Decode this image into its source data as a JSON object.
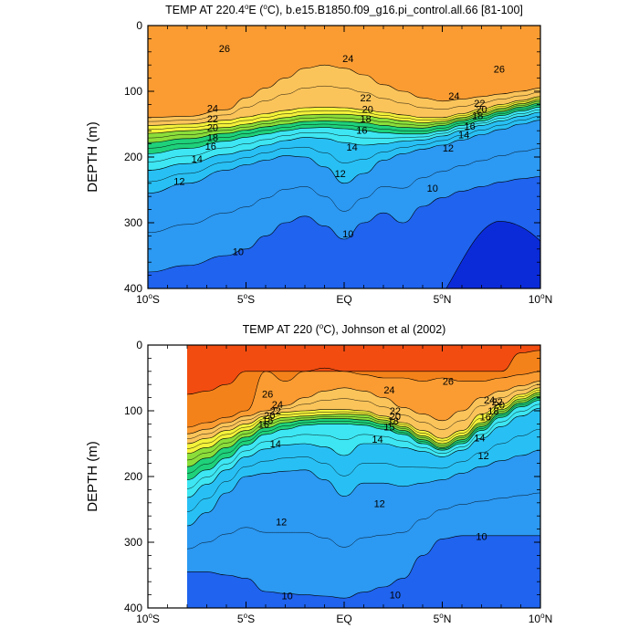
{
  "palette": {
    "lt9": "#0b2bd9",
    "9_10": "#1f63ee",
    "10_12": "#2c99f2",
    "12_14": "#28c0f4",
    "14_16": "#3de6f2",
    "16_18": "#1ed17a",
    "18_20": "#8bde3a",
    "20_22": "#f4f23a",
    "22_24": "#fbc45a",
    "24_26": "#fa9c32",
    "26_28": "#f4821a",
    "gt28": "#f24c10"
  },
  "chart_data": [
    {
      "type": "contour",
      "title": "TEMP AT 220.4°E (°C), b.e15.B1850.f09_g16.pi_control.all.66 [81-100]",
      "title_parts": {
        "pre": "TEMP AT 220.4",
        "deg1": "o",
        "mid": "E (",
        "deg2": "o",
        "post": "C), b.e15.B1850.f09_g16.pi_control.all.66 [81-100]"
      },
      "xlabel": "",
      "ylabel": "DEPTH (m)",
      "xlim": [
        -10,
        10
      ],
      "ylim": [
        400,
        0
      ],
      "x_ticks": [
        {
          "value": -10,
          "num": "10",
          "deg": "o",
          "hem": "S"
        },
        {
          "value": -5,
          "num": "5",
          "deg": "o",
          "hem": "S"
        },
        {
          "value": 0,
          "num": "EQ",
          "deg": "",
          "hem": ""
        },
        {
          "value": 5,
          "num": "5",
          "deg": "o",
          "hem": "N"
        },
        {
          "value": 10,
          "num": "10",
          "deg": "o",
          "hem": "N"
        }
      ],
      "y_ticks": [
        0,
        100,
        200,
        300,
        400
      ],
      "data_lat_range": [
        -10,
        10
      ],
      "isotherm_depths": {
        "lat": [
          -10,
          -8,
          -6,
          -5,
          -4,
          -3,
          -2,
          -1,
          0,
          1,
          2,
          3,
          4,
          5,
          6,
          7,
          8,
          9,
          10
        ],
        "t24": [
          140,
          138,
          128,
          110,
          95,
          80,
          65,
          60,
          65,
          75,
          90,
          100,
          110,
          115,
          112,
          108,
          104,
          100,
          95
        ],
        "t22": [
          152,
          150,
          144,
          139,
          134,
          129,
          125,
          124,
          125,
          128,
          132,
          136,
          140,
          140,
          134,
          127,
          120,
          114,
          108
        ],
        "t20": [
          164,
          160,
          155,
          150,
          145,
          140,
          136,
          135,
          135,
          137,
          141,
          145,
          148,
          146,
          140,
          133,
          126,
          119,
          113
        ],
        "t18": [
          178,
          172,
          164,
          159,
          154,
          150,
          146,
          145,
          146,
          148,
          152,
          155,
          156,
          152,
          145,
          138,
          131,
          124,
          118
        ],
        "t16": [
          195,
          187,
          176,
          170,
          165,
          160,
          156,
          155,
          157,
          160,
          163,
          165,
          165,
          160,
          152,
          145,
          137,
          130,
          124
        ],
        "t14": [
          220,
          210,
          196,
          190,
          182,
          175,
          170,
          172,
          178,
          182,
          180,
          176,
          174,
          168,
          160,
          152,
          145,
          138,
          132
        ],
        "t12": [
          255,
          240,
          220,
          212,
          205,
          198,
          200,
          215,
          240,
          225,
          205,
          195,
          188,
          182,
          174,
          166,
          158,
          150,
          144
        ],
        "t10": [
          375,
          365,
          350,
          340,
          320,
          300,
          290,
          305,
          325,
          300,
          285,
          300,
          275,
          262,
          252,
          245,
          238,
          233,
          230
        ]
      },
      "labels": [
        {
          "text": "26",
          "lat": -6.1,
          "depth": 35
        },
        {
          "text": "24",
          "lat": 0.2,
          "depth": 50
        },
        {
          "text": "26",
          "lat": 7.9,
          "depth": 66
        },
        {
          "text": "22",
          "lat": 1.1,
          "depth": 110
        },
        {
          "text": "24",
          "lat": 5.6,
          "depth": 107
        },
        {
          "text": "22",
          "lat": 6.9,
          "depth": 118
        },
        {
          "text": "20",
          "lat": 7.0,
          "depth": 127
        },
        {
          "text": "20",
          "lat": 1.2,
          "depth": 127
        },
        {
          "text": "24",
          "lat": -6.7,
          "depth": 126
        },
        {
          "text": "22",
          "lat": -6.7,
          "depth": 142
        },
        {
          "text": "18",
          "lat": 1.1,
          "depth": 142
        },
        {
          "text": "18",
          "lat": 6.8,
          "depth": 137
        },
        {
          "text": "20",
          "lat": -6.7,
          "depth": 155
        },
        {
          "text": "16",
          "lat": 0.9,
          "depth": 159
        },
        {
          "text": "16",
          "lat": 6.4,
          "depth": 153
        },
        {
          "text": "18",
          "lat": -6.7,
          "depth": 170
        },
        {
          "text": "14",
          "lat": 6.1,
          "depth": 166
        },
        {
          "text": "16",
          "lat": -6.8,
          "depth": 183
        },
        {
          "text": "14",
          "lat": 0.4,
          "depth": 185
        },
        {
          "text": "12",
          "lat": 5.3,
          "depth": 186
        },
        {
          "text": "14",
          "lat": -7.5,
          "depth": 203
        },
        {
          "text": "12",
          "lat": -0.2,
          "depth": 225
        },
        {
          "text": "12",
          "lat": -8.4,
          "depth": 237
        },
        {
          "text": "10",
          "lat": 4.5,
          "depth": 247
        },
        {
          "text": "10",
          "lat": 0.2,
          "depth": 317
        },
        {
          "text": "10",
          "lat": -5.4,
          "depth": 344
        }
      ]
    },
    {
      "type": "contour",
      "title": "TEMP AT 220 (°C), Johnson et al (2002)",
      "title_parts": {
        "pre": "TEMP AT 220 (",
        "deg1": "o",
        "mid": "C), Johnson et al (2002)",
        "deg2": "",
        "post": ""
      },
      "xlabel": "",
      "ylabel": "DEPTH (m)",
      "xlim": [
        -10,
        10
      ],
      "ylim": [
        400,
        0
      ],
      "x_ticks": [
        {
          "value": -10,
          "num": "10",
          "deg": "o",
          "hem": "S"
        },
        {
          "value": -5,
          "num": "5",
          "deg": "o",
          "hem": "S"
        },
        {
          "value": 0,
          "num": "EQ",
          "deg": "",
          "hem": ""
        },
        {
          "value": 5,
          "num": "5",
          "deg": "o",
          "hem": "N"
        },
        {
          "value": 10,
          "num": "10",
          "deg": "o",
          "hem": "N"
        }
      ],
      "y_ticks": [
        0,
        100,
        200,
        300,
        400
      ],
      "data_lat_range": [
        -8,
        10
      ],
      "isotherm_depths": {
        "lat": [
          -8,
          -7,
          -6,
          -5,
          -4,
          -3,
          -2,
          -1,
          0,
          1,
          2,
          3,
          4,
          5,
          6,
          7,
          8,
          9,
          10
        ],
        "t28": [
          75,
          70,
          60,
          40,
          40,
          40,
          40,
          40,
          40,
          40,
          40,
          40,
          40,
          40,
          40,
          40,
          40,
          12,
          8
        ],
        "t26": [
          125,
          118,
          110,
          100,
          40,
          55,
          40,
          35,
          40,
          45,
          50,
          50,
          55,
          50,
          55,
          55,
          50,
          45,
          40
        ],
        "t24": [
          135,
          128,
          118,
          108,
          100,
          92,
          80,
          70,
          65,
          70,
          80,
          95,
          105,
          115,
          100,
          80,
          70,
          62,
          55
        ],
        "t22": [
          150,
          142,
          130,
          120,
          108,
          102,
          100,
          98,
          98,
          100,
          108,
          118,
          130,
          142,
          130,
          105,
          90,
          75,
          65
        ],
        "t20": [
          165,
          156,
          142,
          130,
          116,
          110,
          108,
          106,
          105,
          106,
          114,
          124,
          138,
          150,
          138,
          118,
          98,
          82,
          72
        ],
        "t18": [
          185,
          172,
          156,
          140,
          126,
          118,
          114,
          112,
          112,
          114,
          120,
          130,
          144,
          156,
          144,
          124,
          104,
          88,
          78
        ],
        "t16": [
          205,
          190,
          172,
          152,
          136,
          128,
          122,
          120,
          120,
          122,
          128,
          136,
          150,
          160,
          150,
          130,
          110,
          94,
          84
        ],
        "t14": [
          232,
          212,
          190,
          170,
          158,
          152,
          150,
          155,
          168,
          150,
          150,
          156,
          162,
          170,
          160,
          142,
          124,
          108,
          96
        ],
        "t12": [
          275,
          255,
          225,
          200,
          195,
          192,
          190,
          205,
          230,
          210,
          210,
          215,
          210,
          205,
          195,
          185,
          176,
          168,
          160
        ],
        "t10": [
          345,
          345,
          350,
          355,
          375,
          378,
          380,
          382,
          385,
          376,
          368,
          355,
          320,
          295,
          290,
          290,
          290,
          290,
          290
        ]
      },
      "labels": [
        {
          "text": "26",
          "lat": -3.9,
          "depth": 74
        },
        {
          "text": "24",
          "lat": 2.3,
          "depth": 68
        },
        {
          "text": "26",
          "lat": 5.3,
          "depth": 55
        },
        {
          "text": "24",
          "lat": -3.4,
          "depth": 90
        },
        {
          "text": "22",
          "lat": -3.5,
          "depth": 100
        },
        {
          "text": "20",
          "lat": -3.8,
          "depth": 107
        },
        {
          "text": "18",
          "lat": -3.9,
          "depth": 114
        },
        {
          "text": "16",
          "lat": -4.1,
          "depth": 120
        },
        {
          "text": "14",
          "lat": -3.5,
          "depth": 150
        },
        {
          "text": "22",
          "lat": 2.6,
          "depth": 100
        },
        {
          "text": "20",
          "lat": 2.6,
          "depth": 108
        },
        {
          "text": "18",
          "lat": 2.5,
          "depth": 115
        },
        {
          "text": "15",
          "lat": 2.3,
          "depth": 124
        },
        {
          "text": "14",
          "lat": 1.7,
          "depth": 143
        },
        {
          "text": "24",
          "lat": 7.4,
          "depth": 83
        },
        {
          "text": "22",
          "lat": 7.8,
          "depth": 86
        },
        {
          "text": "20",
          "lat": 7.9,
          "depth": 91
        },
        {
          "text": "18",
          "lat": 7.6,
          "depth": 100
        },
        {
          "text": "16",
          "lat": 7.2,
          "depth": 109
        },
        {
          "text": "14",
          "lat": 6.9,
          "depth": 141
        },
        {
          "text": "12",
          "lat": 7.1,
          "depth": 168
        },
        {
          "text": "12",
          "lat": 1.8,
          "depth": 241
        },
        {
          "text": "12",
          "lat": -3.2,
          "depth": 269
        },
        {
          "text": "10",
          "lat": 7.0,
          "depth": 291
        },
        {
          "text": "10",
          "lat": -2.9,
          "depth": 381
        },
        {
          "text": "10",
          "lat": 2.6,
          "depth": 380
        }
      ]
    }
  ]
}
